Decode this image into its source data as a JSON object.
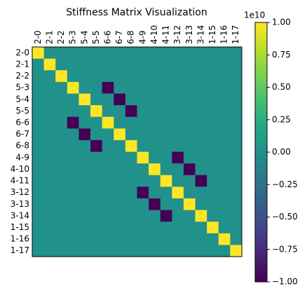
{
  "chart_data": {
    "type": "heatmap",
    "title": "Stiffness Matrix Visualization",
    "categories": [
      "2-0",
      "2-1",
      "2-2",
      "5-3",
      "5-4",
      "5-5",
      "6-6",
      "6-7",
      "6-8",
      "4-9",
      "4-10",
      "4-11",
      "3-12",
      "3-13",
      "3-14",
      "1-15",
      "1-16",
      "1-17"
    ],
    "values": [
      [
        1,
        0,
        0,
        0,
        0,
        0,
        0,
        0,
        0,
        0,
        0,
        0,
        0,
        0,
        0,
        0,
        0,
        0
      ],
      [
        0,
        1,
        0,
        0,
        0,
        0,
        0,
        0,
        0,
        0,
        0,
        0,
        0,
        0,
        0,
        0,
        0,
        0
      ],
      [
        0,
        0,
        1,
        0,
        0,
        0,
        0,
        0,
        0,
        0,
        0,
        0,
        0,
        0,
        0,
        0,
        0,
        0
      ],
      [
        0,
        0,
        0,
        1,
        0,
        0,
        -1,
        0,
        0,
        0,
        0,
        0,
        0,
        0,
        0,
        0,
        0,
        0
      ],
      [
        0,
        0,
        0,
        0,
        1,
        0,
        0,
        -1,
        0,
        0,
        0,
        0,
        0,
        0,
        0,
        0,
        0,
        0
      ],
      [
        0,
        0,
        0,
        0,
        0,
        1,
        0,
        0,
        -1,
        0,
        0,
        0,
        0,
        0,
        0,
        0,
        0,
        0
      ],
      [
        0,
        0,
        0,
        -1,
        0,
        0,
        1,
        0,
        0,
        0,
        0,
        0,
        0,
        0,
        0,
        0,
        0,
        0
      ],
      [
        0,
        0,
        0,
        0,
        -1,
        0,
        0,
        1,
        0,
        0,
        0,
        0,
        0,
        0,
        0,
        0,
        0,
        0
      ],
      [
        0,
        0,
        0,
        0,
        0,
        -1,
        0,
        0,
        1,
        0,
        0,
        0,
        0,
        0,
        0,
        0,
        0,
        0
      ],
      [
        0,
        0,
        0,
        0,
        0,
        0,
        0,
        0,
        0,
        1,
        0,
        0,
        -1,
        0,
        0,
        0,
        0,
        0
      ],
      [
        0,
        0,
        0,
        0,
        0,
        0,
        0,
        0,
        0,
        0,
        1,
        0,
        0,
        -1,
        0,
        0,
        0,
        0
      ],
      [
        0,
        0,
        0,
        0,
        0,
        0,
        0,
        0,
        0,
        0,
        0,
        1,
        0,
        0,
        -1,
        0,
        0,
        0
      ],
      [
        0,
        0,
        0,
        0,
        0,
        0,
        0,
        0,
        0,
        -1,
        0,
        0,
        1,
        0,
        0,
        0,
        0,
        0
      ],
      [
        0,
        0,
        0,
        0,
        0,
        0,
        0,
        0,
        0,
        0,
        -1,
        0,
        0,
        1,
        0,
        0,
        0,
        0
      ],
      [
        0,
        0,
        0,
        0,
        0,
        0,
        0,
        0,
        0,
        0,
        0,
        -1,
        0,
        0,
        1,
        0,
        0,
        0
      ],
      [
        0,
        0,
        0,
        0,
        0,
        0,
        0,
        0,
        0,
        0,
        0,
        0,
        0,
        0,
        0,
        1,
        0,
        0
      ],
      [
        0,
        0,
        0,
        0,
        0,
        0,
        0,
        0,
        0,
        0,
        0,
        0,
        0,
        0,
        0,
        0,
        1,
        0
      ],
      [
        0,
        0,
        0,
        0,
        0,
        0,
        0,
        0,
        0,
        0,
        0,
        0,
        0,
        0,
        0,
        0,
        0,
        1
      ]
    ],
    "colormap": "viridis",
    "clim": [
      -1,
      1
    ],
    "colorbar_offset": "1e10",
    "colorbar_ticks": [
      {
        "value": 1,
        "label": "1.00"
      },
      {
        "value": 0.75,
        "label": "0.75"
      },
      {
        "value": 0.5,
        "label": "0.50"
      },
      {
        "value": 0.25,
        "label": "0.25"
      },
      {
        "value": 0,
        "label": "0.00"
      },
      {
        "value": -0.25,
        "label": "−0.25"
      },
      {
        "value": -0.5,
        "label": "−0.50"
      },
      {
        "value": -0.75,
        "label": "−0.75"
      },
      {
        "value": -1,
        "label": "−1.00"
      }
    ]
  }
}
